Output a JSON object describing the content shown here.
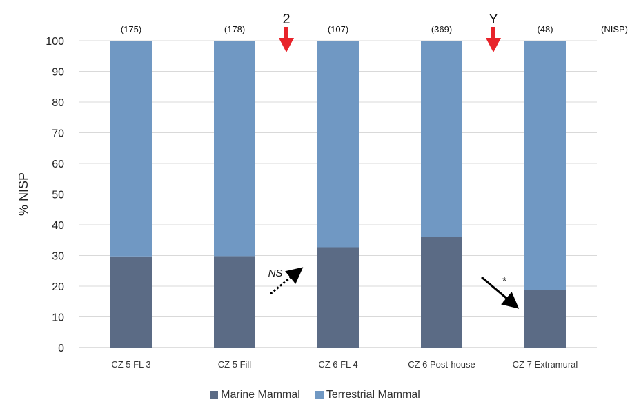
{
  "chart_data": {
    "type": "bar",
    "stacked": true,
    "ylabel": "% NISP",
    "ylim": [
      0,
      100
    ],
    "yticks": [
      0,
      10,
      20,
      30,
      40,
      50,
      60,
      70,
      80,
      90,
      100
    ],
    "grid": true,
    "categories": [
      "CZ 5 FL 3",
      "CZ 5 Fill",
      "CZ 6 FL 4",
      "CZ 6 Post-house",
      "CZ 7 Extramural"
    ],
    "nisp_labels": [
      "(175)",
      "(178)",
      "(107)",
      "(369)",
      "(48)"
    ],
    "nisp_header": "(NISP)",
    "series": [
      {
        "name": "Marine Mammal",
        "color": "#5b6b85",
        "values": [
          29.7,
          29.8,
          32.7,
          36.0,
          18.8
        ]
      },
      {
        "name": "Terrestrial Mammal",
        "color": "#7098c3",
        "values": [
          70.3,
          70.2,
          67.3,
          64.0,
          81.2
        ]
      }
    ],
    "markers": [
      {
        "label": "2",
        "color": "#e8232a",
        "between": [
          1,
          2
        ]
      },
      {
        "label": "Y",
        "color": "#e8232a",
        "between": [
          3,
          4
        ]
      }
    ],
    "annotations": [
      {
        "text": "NS",
        "style": "dotted",
        "direction": "up",
        "between": [
          1,
          2
        ]
      },
      {
        "text": "*",
        "style": "solid",
        "direction": "down",
        "between": [
          3,
          4
        ]
      }
    ],
    "legend_position": "bottom"
  }
}
